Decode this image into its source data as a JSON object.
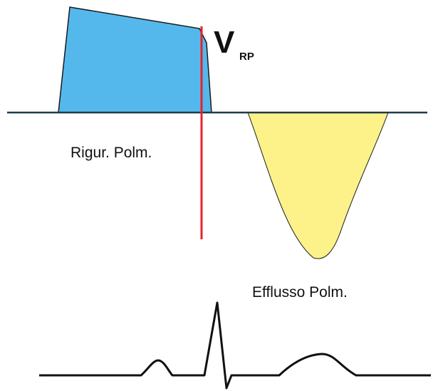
{
  "labels": {
    "v": "V",
    "v_sub": "RP",
    "rigur": "Rigur. Polm.",
    "efflusso": "Efflusso Polm."
  }
}
